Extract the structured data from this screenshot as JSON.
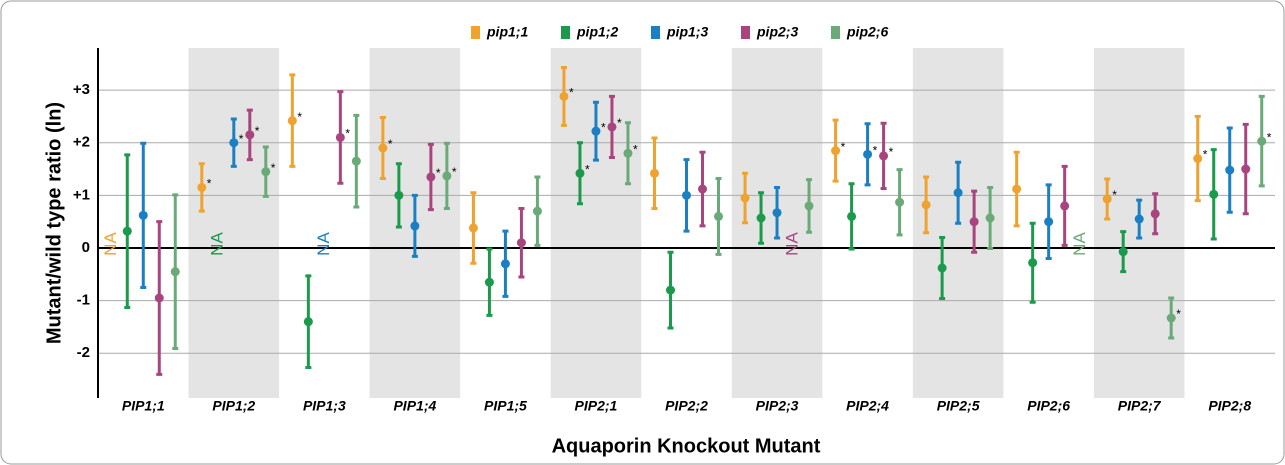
{
  "chart_data": {
    "type": "errorbar",
    "y_label": "Mutant/wild type ratio (ln)",
    "x_label": "Aquaporin Knockout Mutant",
    "categories": [
      "PIP1;1",
      "PIP1;2",
      "PIP1;3",
      "PIP1;4",
      "PIP1;5",
      "PIP2;1",
      "PIP2;2",
      "PIP2;3",
      "PIP2;4",
      "PIP2;5",
      "PIP2;6",
      "PIP2;7",
      "PIP2;8"
    ],
    "na_label": "NA",
    "ylim": [
      -2.85,
      3.8
    ],
    "yticks": [
      {
        "value": 3,
        "label": "+3"
      },
      {
        "value": 2,
        "label": "+2"
      },
      {
        "value": 1,
        "label": "+1"
      },
      0,
      -1,
      -2
    ],
    "grid": true,
    "legend": "top",
    "series": [
      {
        "name": "pip1;1",
        "color": "#f0a22e",
        "values": [
          null,
          1.15,
          2.42,
          1.9,
          0.38,
          2.88,
          1.42,
          0.95,
          1.85,
          0.82,
          1.12,
          0.93,
          1.7
        ],
        "errors": [
          null,
          0.45,
          0.87,
          0.58,
          0.67,
          0.55,
          0.67,
          0.47,
          0.58,
          0.53,
          0.7,
          0.38,
          0.8
        ],
        "significance": [
          null,
          "*",
          "*",
          "*",
          null,
          "*",
          null,
          null,
          "*",
          null,
          null,
          "*",
          "*"
        ]
      },
      {
        "name": "pip1;2",
        "color": "#1a9a4a",
        "values": [
          0.32,
          null,
          -1.4,
          1.0,
          -0.65,
          1.42,
          -0.8,
          0.57,
          0.6,
          -0.38,
          -0.28,
          -0.07,
          1.02
        ],
        "errors": [
          1.45,
          null,
          0.87,
          0.6,
          0.63,
          0.58,
          0.72,
          0.48,
          0.62,
          0.58,
          0.75,
          0.38,
          0.85
        ],
        "significance": [
          null,
          null,
          null,
          null,
          null,
          "*",
          null,
          null,
          null,
          null,
          null,
          null,
          null
        ]
      },
      {
        "name": "pip1;3",
        "color": "#1b7fc4",
        "values": [
          0.62,
          2.0,
          null,
          0.42,
          -0.3,
          2.22,
          1.0,
          0.67,
          1.78,
          1.05,
          0.5,
          0.55,
          1.48
        ],
        "errors": [
          1.37,
          0.45,
          null,
          0.58,
          0.62,
          0.55,
          0.68,
          0.48,
          0.58,
          0.58,
          0.7,
          0.36,
          0.8
        ],
        "significance": [
          null,
          "*",
          null,
          null,
          null,
          "*",
          null,
          null,
          "*",
          null,
          null,
          null,
          null
        ]
      },
      {
        "name": "pip2;3",
        "color": "#a8457e",
        "values": [
          -0.95,
          2.15,
          2.1,
          1.35,
          0.1,
          2.3,
          1.12,
          null,
          1.75,
          0.5,
          0.8,
          0.65,
          1.5
        ],
        "errors": [
          1.45,
          0.47,
          0.87,
          0.62,
          0.65,
          0.58,
          0.7,
          null,
          0.62,
          0.58,
          0.75,
          0.38,
          0.85
        ],
        "significance": [
          null,
          "*",
          "*",
          "*",
          null,
          "*",
          null,
          null,
          "*",
          null,
          null,
          null,
          null
        ]
      },
      {
        "name": "pip2;6",
        "color": "#6aaa78",
        "values": [
          -0.45,
          1.45,
          1.65,
          1.37,
          0.7,
          1.8,
          0.6,
          0.8,
          0.87,
          0.57,
          null,
          -1.33,
          2.03
        ],
        "errors": [
          1.46,
          0.47,
          0.87,
          0.62,
          0.65,
          0.58,
          0.72,
          0.5,
          0.62,
          0.58,
          null,
          0.38,
          0.85
        ],
        "significance": [
          null,
          "*",
          null,
          "*",
          null,
          "*",
          null,
          null,
          null,
          null,
          null,
          "*",
          "*"
        ]
      }
    ]
  }
}
